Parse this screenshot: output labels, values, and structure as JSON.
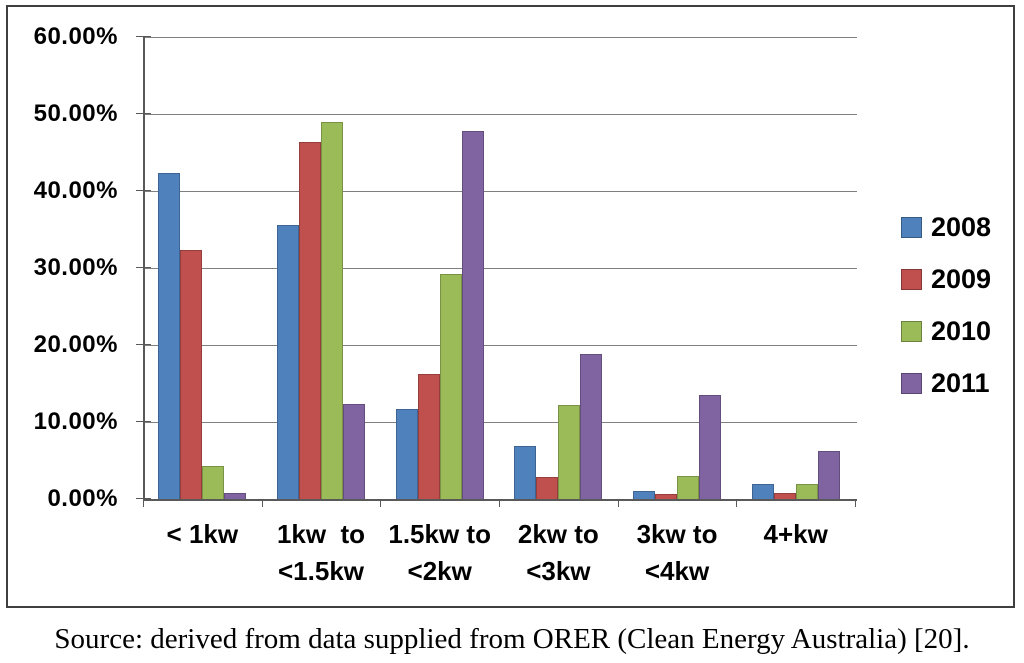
{
  "chart_data": {
    "type": "bar",
    "title": "",
    "xlabel": "",
    "ylabel": "",
    "ylim": [
      0,
      60
    ],
    "ytick_step": 10,
    "grid": true,
    "legend_position": "right",
    "value_format": "percent",
    "categories": [
      "< 1kw",
      "1kw to <1.5kw",
      "1.5kw to <2kw",
      "2kw to <3kw",
      "3kw to <4kw",
      "4+kw"
    ],
    "category_lines": [
      [
        "< 1kw"
      ],
      [
        "1kw  to",
        "<1.5kw"
      ],
      [
        "1.5kw to",
        "<2kw"
      ],
      [
        "2kw to",
        "<3kw"
      ],
      [
        "3kw to",
        "<4kw"
      ],
      [
        "4+kw"
      ]
    ],
    "yticks": [
      {
        "value": 60,
        "label": "60.00%"
      },
      {
        "value": 50,
        "label": "50.00%"
      },
      {
        "value": 40,
        "label": "40.00%"
      },
      {
        "value": 30,
        "label": "30.00%"
      },
      {
        "value": 20,
        "label": "20.00%"
      },
      {
        "value": 10,
        "label": "10.00%"
      },
      {
        "value": 0,
        "label": "0.00%"
      }
    ],
    "series": [
      {
        "name": "2008",
        "color": "#4F81BD",
        "values": [
          42.3,
          35.6,
          11.7,
          6.9,
          1.1,
          1.9
        ]
      },
      {
        "name": "2009",
        "color": "#C0504D",
        "values": [
          32.4,
          46.4,
          16.3,
          2.9,
          0.7,
          0.8
        ]
      },
      {
        "name": "2010",
        "color": "#9BBB59",
        "values": [
          4.3,
          49.0,
          29.2,
          12.2,
          3.0,
          1.9
        ]
      },
      {
        "name": "2011",
        "color": "#8064A2",
        "values": [
          0.8,
          12.3,
          47.8,
          18.8,
          13.5,
          6.2
        ]
      }
    ]
  },
  "caption": "Source: derived from data supplied from ORER (Clean Energy Australia) [20].",
  "colors": {
    "background": "#FFFFFF",
    "gridline": "#7F7F7F",
    "axis": "#595959",
    "frame_border": "#3F3F3F",
    "text": "#000000"
  }
}
